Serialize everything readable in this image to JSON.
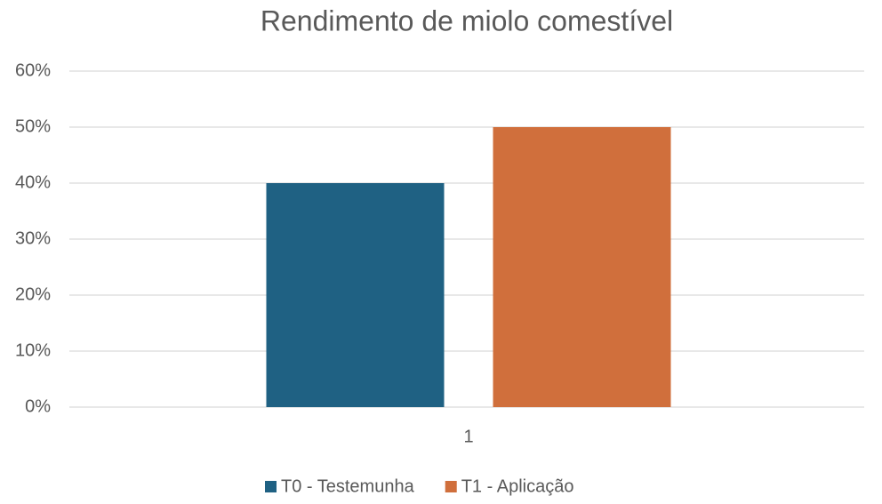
{
  "chart_data": {
    "type": "bar",
    "title": "Rendimento de miolo comestível",
    "categories": [
      "1"
    ],
    "series": [
      {
        "name": "T0 - Testemunha",
        "color": "#1f6183",
        "values": [
          40
        ]
      },
      {
        "name": "T1 - Aplicação",
        "color": "#d06f3c",
        "values": [
          50
        ]
      }
    ],
    "ylim": [
      0,
      60
    ],
    "yticks": [
      {
        "value": 0,
        "label": "0%"
      },
      {
        "value": 10,
        "label": "10%"
      },
      {
        "value": 20,
        "label": "20%"
      },
      {
        "value": 30,
        "label": "30%"
      },
      {
        "value": 40,
        "label": "40%"
      },
      {
        "value": 50,
        "label": "50%"
      },
      {
        "value": 60,
        "label": "60%"
      }
    ],
    "grid": true,
    "legend": "bottom"
  }
}
